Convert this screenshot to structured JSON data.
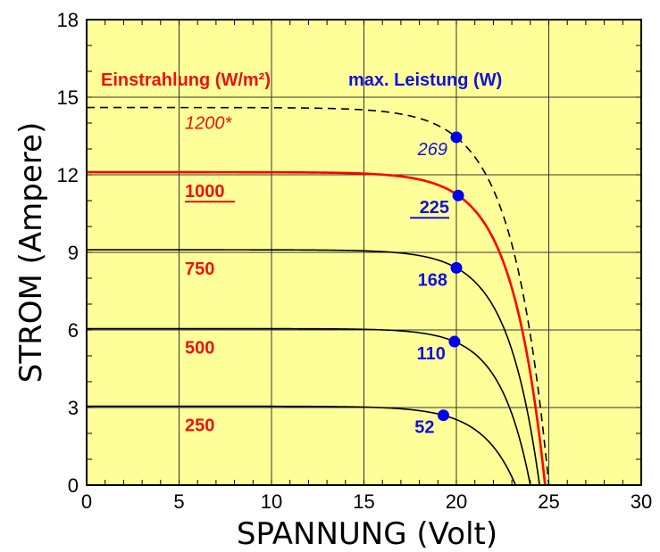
{
  "chart_data": {
    "type": "line",
    "xlabel": "SPANNUNG  (Volt)",
    "ylabel": "STROM  (Ampere)",
    "xlim": [
      0,
      30
    ],
    "ylim": [
      0,
      18
    ],
    "x_ticks": [
      "0",
      "5",
      "10",
      "15",
      "20",
      "25",
      "30"
    ],
    "y_ticks": [
      "0",
      "3",
      "6",
      "9",
      "12",
      "15",
      "18"
    ],
    "grid": true,
    "background_color": "#ffff99",
    "legend": {
      "irradiance_title": "Einstrahlung (W/m²)",
      "power_title": "max. Leistung (W)"
    },
    "series": [
      {
        "irradiance": "1200*",
        "power": "269",
        "isc": 14.6,
        "voc": 25.0,
        "mpp_v": 20.0,
        "mpp_i": 13.45,
        "color": "#000000",
        "dashed": true,
        "italic": true,
        "underline": false
      },
      {
        "irradiance": "1000",
        "power": "225",
        "isc": 12.1,
        "voc": 24.8,
        "mpp_v": 20.1,
        "mpp_i": 11.2,
        "color": "#ff0000",
        "dashed": false,
        "italic": false,
        "underline": true
      },
      {
        "irradiance": "750",
        "power": "168",
        "isc": 9.1,
        "voc": 24.5,
        "mpp_v": 20.0,
        "mpp_i": 8.4,
        "color": "#000000",
        "dashed": false,
        "italic": false,
        "underline": false
      },
      {
        "irradiance": "500",
        "power": "110",
        "isc": 6.05,
        "voc": 24.0,
        "mpp_v": 19.9,
        "mpp_i": 5.55,
        "color": "#000000",
        "dashed": false,
        "italic": false,
        "underline": false
      },
      {
        "irradiance": "250",
        "power": "52",
        "isc": 3.05,
        "voc": 23.2,
        "mpp_v": 19.3,
        "mpp_i": 2.7,
        "color": "#000000",
        "dashed": false,
        "italic": false,
        "underline": false
      }
    ],
    "point_color": "#0000ee"
  }
}
